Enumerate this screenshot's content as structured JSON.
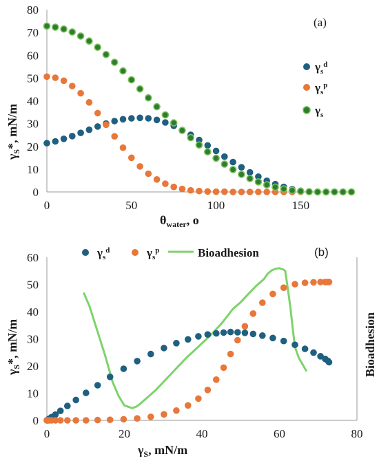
{
  "chart_data": [
    {
      "type": "scatter",
      "panel_label": "(a)",
      "xlabel_main": "θ",
      "xlabel_sub": "water",
      "xlabel_tail": ", o",
      "ylabel_main": "γ",
      "ylabel_sub": "S",
      "ylabel_tail": "*, mN/m",
      "xlim": [
        0,
        180
      ],
      "ylim": [
        0,
        80
      ],
      "xticks": [
        "0",
        "50",
        "100",
        "150"
      ],
      "yticks": [
        "0",
        "10",
        "20",
        "30",
        "40",
        "50",
        "60",
        "70",
        "80"
      ],
      "legend_position": "right",
      "series": [
        {
          "name_main": "γ",
          "name_sub": "s",
          "name_sup": "d",
          "color": "#1f5f7f",
          "x": [
            0,
            5,
            10,
            15,
            20,
            25,
            30,
            35,
            40,
            45,
            50,
            55,
            60,
            65,
            70,
            75,
            80,
            85,
            90,
            95,
            100,
            105,
            110,
            115,
            120,
            125,
            130,
            135,
            140,
            145,
            150,
            155,
            160,
            165,
            170,
            175,
            180
          ],
          "y": [
            21.4,
            22.2,
            23.3,
            24.5,
            25.9,
            27.3,
            28.7,
            30.0,
            31.1,
            31.9,
            32.3,
            32.5,
            32.3,
            31.6,
            30.5,
            29.0,
            27.2,
            25.1,
            22.8,
            20.4,
            18.0,
            15.5,
            13.1,
            10.8,
            8.6,
            6.7,
            4.9,
            3.4,
            2.2,
            1.2,
            0.5,
            0.2,
            0.1,
            0.0,
            0.0,
            0.0,
            0.0
          ]
        },
        {
          "name_main": "γ",
          "name_sub": "s",
          "name_sup": "p",
          "color": "#e8773a",
          "x": [
            0,
            5,
            10,
            15,
            20,
            25,
            30,
            35,
            40,
            45,
            50,
            55,
            60,
            65,
            70,
            75,
            80,
            85,
            90,
            95,
            100,
            105,
            110,
            115,
            120,
            125,
            130,
            135,
            140,
            145,
            150,
            155,
            160,
            165,
            170,
            175,
            180
          ],
          "y": [
            50.6,
            50.1,
            48.8,
            46.5,
            43.3,
            39.3,
            34.6,
            29.5,
            24.4,
            19.4,
            15.0,
            11.2,
            8.0,
            5.5,
            3.6,
            2.2,
            1.3,
            0.7,
            0.4,
            0.2,
            0.1,
            0.1,
            0.0,
            0.0,
            0.0,
            0.0,
            0.0,
            0.0,
            0.0,
            0.0,
            0.0,
            0.0,
            0.0,
            0.0,
            0.0,
            0.0,
            0.0
          ]
        },
        {
          "name_main": "γ",
          "name_sub": "s",
          "name_sup": "",
          "color": "#2e7d2e",
          "x": [
            0,
            5,
            10,
            15,
            20,
            25,
            30,
            35,
            40,
            45,
            50,
            55,
            60,
            65,
            70,
            75,
            80,
            85,
            90,
            95,
            100,
            105,
            110,
            115,
            120,
            125,
            130,
            135,
            140,
            145,
            150,
            155,
            160,
            165,
            170,
            175,
            180
          ],
          "y": [
            72.8,
            72.3,
            71.5,
            70.2,
            68.4,
            66.2,
            63.5,
            60.3,
            56.9,
            53.1,
            49.2,
            45.2,
            41.3,
            37.4,
            33.8,
            30.3,
            27.0,
            23.8,
            20.6,
            17.6,
            14.8,
            12.2,
            9.8,
            7.7,
            5.9,
            4.4,
            3.1,
            2.1,
            1.3,
            0.7,
            0.3,
            0.1,
            0.0,
            0.0,
            0.0,
            0.0,
            0.0
          ]
        }
      ]
    },
    {
      "type": "scatter",
      "panel_label": "(b)",
      "xlabel_main": "γ",
      "xlabel_sub": "S",
      "xlabel_tail": ", mN/m",
      "ylabel_main": "γ",
      "ylabel_sub": "S",
      "ylabel_tail": "*, mN/m",
      "y2label": "Bioadhesion",
      "xlim": [
        0,
        80
      ],
      "ylim": [
        0,
        60
      ],
      "xticks": [
        "0",
        "20",
        "40",
        "60",
        "80"
      ],
      "yticks": [
        "0",
        "10",
        "20",
        "30",
        "40",
        "50",
        "60"
      ],
      "legend_position": "top",
      "series": [
        {
          "name_main": "γ",
          "name_sub": "s",
          "name_sup": "d",
          "color": "#1f5f7f",
          "x": [
            0.0,
            0.1,
            0.3,
            0.6,
            1.2,
            2.2,
            3.5,
            5.3,
            7.5,
            10.1,
            13.1,
            16.3,
            19.8,
            23.3,
            26.8,
            30.2,
            33.4,
            36.4,
            39.1,
            41.5,
            43.7,
            45.6,
            47.4,
            49.2,
            51.1,
            53.2,
            55.6,
            58.3,
            61.1,
            64.0,
            66.6,
            68.8,
            70.6,
            71.8,
            72.5,
            72.8
          ],
          "y": [
            0.0,
            0.1,
            0.3,
            0.6,
            1.2,
            2.1,
            3.5,
            5.3,
            7.5,
            10.1,
            12.9,
            16.0,
            19.0,
            21.8,
            24.4,
            26.6,
            28.4,
            29.8,
            30.9,
            31.6,
            32.0,
            32.3,
            32.5,
            32.4,
            32.2,
            31.8,
            31.2,
            30.3,
            29.2,
            27.8,
            26.3,
            24.9,
            23.6,
            22.6,
            21.9,
            21.4
          ]
        },
        {
          "name_main": "γ",
          "name_sub": "s",
          "name_sup": "p",
          "color": "#e8773a",
          "x": [
            0.0,
            0.1,
            0.3,
            0.6,
            1.2,
            2.2,
            3.5,
            5.3,
            7.5,
            10.1,
            13.1,
            16.3,
            19.8,
            23.3,
            26.8,
            30.2,
            33.4,
            36.4,
            39.1,
            41.5,
            43.7,
            45.6,
            47.4,
            49.2,
            51.1,
            53.2,
            55.6,
            58.3,
            61.1,
            64.0,
            66.6,
            68.8,
            70.6,
            71.8,
            72.5,
            72.8
          ],
          "y": [
            0,
            0,
            0,
            0,
            0,
            0,
            0,
            0,
            0,
            0,
            0.1,
            0.2,
            0.4,
            0.7,
            1.3,
            2.2,
            3.6,
            5.5,
            8.0,
            11.2,
            15.0,
            19.4,
            24.4,
            29.5,
            34.6,
            39.3,
            43.3,
            46.5,
            48.8,
            50.1,
            50.6,
            50.8,
            50.9,
            50.9,
            50.9,
            50.9
          ]
        },
        {
          "name": "Bioadhesion",
          "type": "line",
          "color": "#7dd36a",
          "x": [
            9.5,
            11,
            13,
            15,
            17,
            18.5,
            20,
            21,
            22,
            23,
            24,
            26,
            28,
            30,
            33,
            36,
            39,
            42,
            45,
            48,
            50,
            52,
            54,
            56,
            57,
            58,
            59,
            60,
            61,
            61.5,
            62,
            62.8,
            63.5,
            64,
            65,
            66,
            67
          ],
          "y": [
            47,
            42,
            33,
            24,
            14,
            9,
            5.5,
            5,
            4.5,
            5,
            6,
            8.5,
            11,
            14,
            18.5,
            23,
            27,
            31,
            35.5,
            41,
            43.5,
            46.5,
            49.5,
            52,
            54,
            55.2,
            55.8,
            56,
            55.5,
            55,
            50,
            42,
            33,
            27,
            23,
            20.5,
            18
          ]
        }
      ]
    }
  ]
}
